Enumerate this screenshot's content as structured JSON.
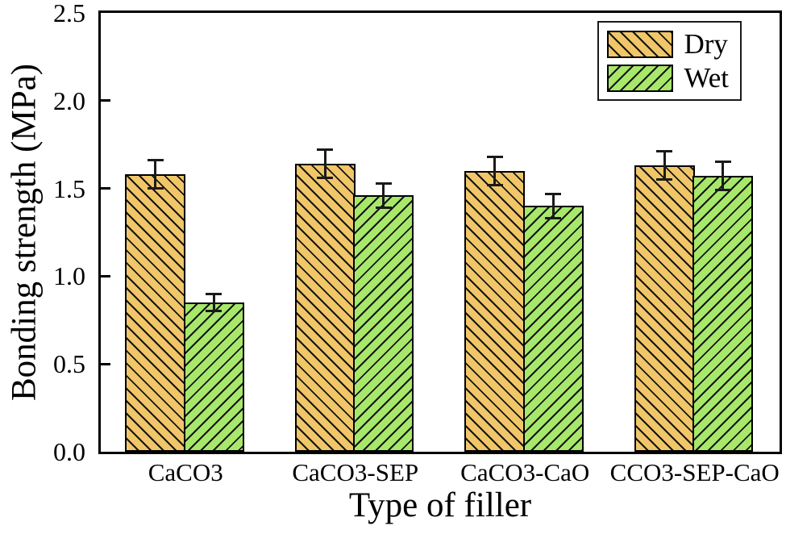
{
  "chart_data": {
    "type": "bar",
    "xlabel": "Type of filler",
    "ylabel": "Bonding strength (MPa)",
    "categories": [
      "CaCO3",
      "CaCO3-SEP",
      "CaCO3-CaO",
      "CCO3-SEP-CaO"
    ],
    "series": [
      {
        "name": "Dry",
        "color": "#F0C668",
        "hatch": "\\",
        "values": [
          1.58,
          1.64,
          1.6,
          1.63
        ],
        "errors": [
          0.08,
          0.08,
          0.08,
          0.08
        ]
      },
      {
        "name": "Wet",
        "color": "#A7E86B",
        "hatch": "/",
        "values": [
          0.85,
          1.46,
          1.4,
          1.57
        ],
        "errors": [
          0.05,
          0.07,
          0.07,
          0.08
        ]
      }
    ],
    "ylim": [
      0,
      2.5
    ],
    "yticks": [
      0,
      0.5,
      1,
      1.5,
      2,
      2.5
    ],
    "ytick_labels": [
      "0.0",
      "0.5",
      "1.0",
      "1.5",
      "2.0",
      "2.5"
    ],
    "legend_position": "top-right",
    "grid": false,
    "hatch_line_color": "#141414",
    "error_bar_color": "#1a1a1a",
    "axis_color": "#000000"
  }
}
